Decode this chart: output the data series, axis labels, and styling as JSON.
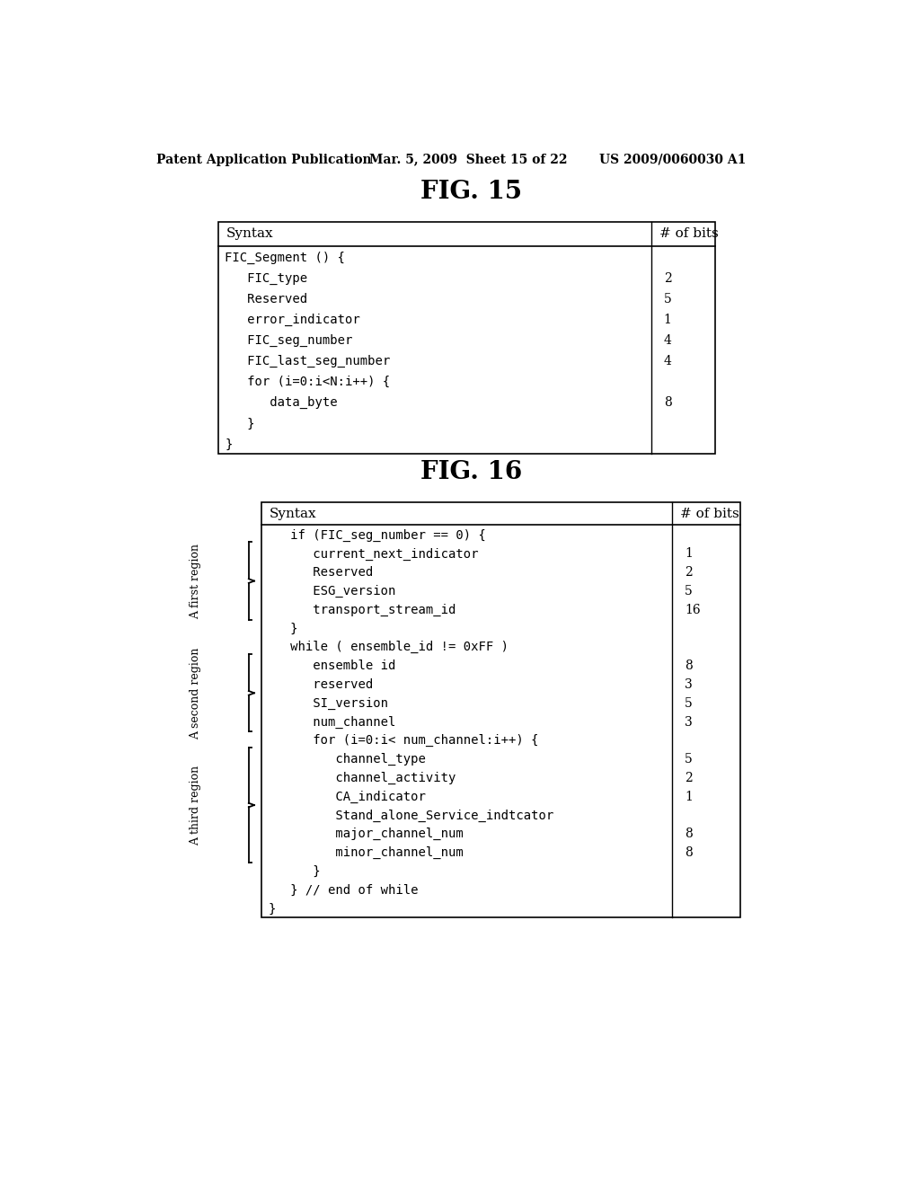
{
  "bg_color": "#ffffff",
  "header_text": "Patent Application Publication",
  "header_date": "Mar. 5, 2009  Sheet 15 of 22",
  "header_patent": "US 2009/0060030 A1",
  "fig15_title": "FIG. 15",
  "fig16_title": "FIG. 16",
  "fig15_table": {
    "header": [
      "Syntax",
      "# of bits"
    ],
    "rows": [
      [
        "FIC_Segment () {",
        ""
      ],
      [
        "   FIC_type",
        "2"
      ],
      [
        "   Reserved",
        "5"
      ],
      [
        "   error_indicator",
        "1"
      ],
      [
        "   FIC_seg_number",
        "4"
      ],
      [
        "   FIC_last_seg_number",
        "4"
      ],
      [
        "   for (i=0:i<N:i++) {",
        ""
      ],
      [
        "      data_byte",
        "8"
      ],
      [
        "   }",
        ""
      ],
      [
        "}",
        ""
      ]
    ]
  },
  "fig16_table": {
    "header": [
      "Syntax",
      "# of bits"
    ],
    "rows": [
      [
        "   if (FIC_seg_number == 0) {",
        ""
      ],
      [
        "      current_next_indicator",
        "1"
      ],
      [
        "      Reserved",
        "2"
      ],
      [
        "      ESG_version",
        "5"
      ],
      [
        "      transport_stream_id",
        "16"
      ],
      [
        "   }",
        ""
      ],
      [
        "   while ( ensemble_id != 0xFF )",
        ""
      ],
      [
        "      ensemble id",
        "8"
      ],
      [
        "      reserved",
        "3"
      ],
      [
        "      SI_version",
        "5"
      ],
      [
        "      num_channel",
        "3"
      ],
      [
        "      for (i=0:i< num_channel:i++) {",
        ""
      ],
      [
        "         channel_type",
        "5"
      ],
      [
        "         channel_activity",
        "2"
      ],
      [
        "         CA_indicator",
        "1"
      ],
      [
        "         Stand_alone_Service_indtcator",
        ""
      ],
      [
        "         major_channel_num",
        "8"
      ],
      [
        "         minor_channel_num",
        "8"
      ],
      [
        "      }",
        ""
      ],
      [
        "   } // end of while",
        ""
      ],
      [
        "}",
        ""
      ]
    ]
  },
  "regions": [
    {
      "label": "A first region",
      "start": 1,
      "end": 4
    },
    {
      "label": "A second region",
      "start": 7,
      "end": 10
    },
    {
      "label": "A third region",
      "start": 12,
      "end": 17
    }
  ],
  "font_serif": "DejaVu Serif",
  "font_mono": "DejaVu Sans Mono"
}
